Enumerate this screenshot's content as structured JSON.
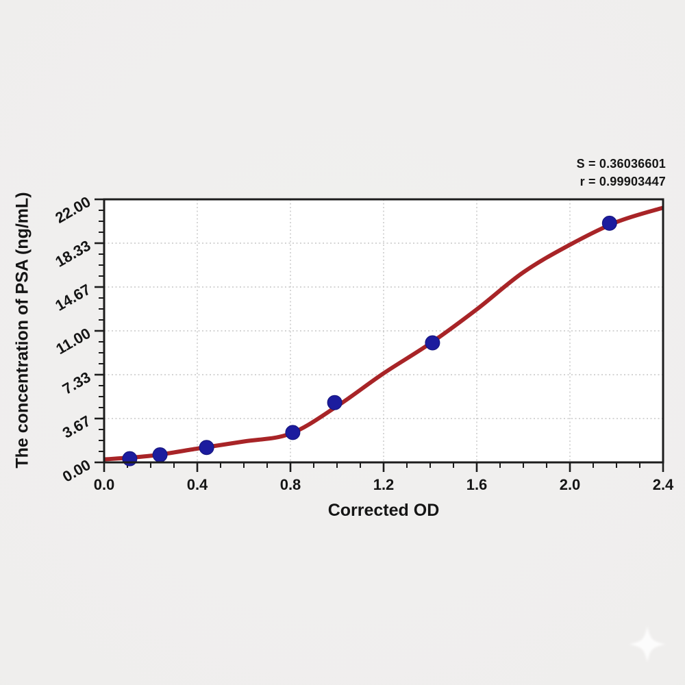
{
  "page": {
    "background_color": "#efeeed",
    "plot_background": "#ffffff"
  },
  "annotation": {
    "s_label": "S = 0.36036601",
    "r_label": "r = 0.99903447"
  },
  "chart_data": {
    "type": "scatter",
    "title": "",
    "xlabel": "Corrected OD",
    "ylabel": "The concentration of PSA (ng/mL)",
    "xlim": [
      0,
      2.4
    ],
    "ylim": [
      0,
      22
    ],
    "x_ticks": [
      0,
      0.4,
      0.8,
      1.2,
      1.6,
      2.0,
      2.4
    ],
    "x_tick_labels": [
      "0.0",
      "0.4",
      "0.8",
      "1.2",
      "1.6",
      "2.0",
      "2.4"
    ],
    "y_ticks": [
      0,
      3.6667,
      7.3333,
      11.0,
      14.6667,
      18.3333,
      22.0
    ],
    "y_tick_labels": [
      "0.00",
      "3.67",
      "7.33",
      "11.00",
      "14.67",
      "18.33",
      "22.00"
    ],
    "minor_divisions_per_major": 4,
    "grid": true,
    "y_tick_label_rotation_deg": -30,
    "stats": {
      "S": 0.36036601,
      "r": 0.99903447
    },
    "series": [
      {
        "name": "standard-points",
        "type": "scatter",
        "x": [
          0.11,
          0.24,
          0.44,
          0.81,
          0.99,
          1.41,
          2.17
        ],
        "y": [
          0.31,
          0.63,
          1.25,
          2.5,
          5.0,
          10.0,
          20.0
        ]
      },
      {
        "name": "fitted-curve",
        "type": "line",
        "x": [
          0.0,
          0.2,
          0.4,
          0.6,
          0.8,
          1.0,
          1.2,
          1.4,
          1.6,
          1.8,
          2.0,
          2.2,
          2.4
        ],
        "y": [
          0.25,
          0.55,
          1.15,
          1.75,
          2.4,
          4.7,
          7.45,
          9.95,
          12.8,
          15.9,
          18.2,
          20.1,
          21.3
        ]
      }
    ],
    "colors": {
      "curve": "#a82427",
      "points": "#1c1c9e",
      "grid": "#c5c5c5",
      "axis": "#1c1c1c",
      "text": "#151515"
    },
    "legend": "none"
  },
  "watermark": {
    "icon": "four-pointed-star",
    "color": "#ffffff"
  }
}
